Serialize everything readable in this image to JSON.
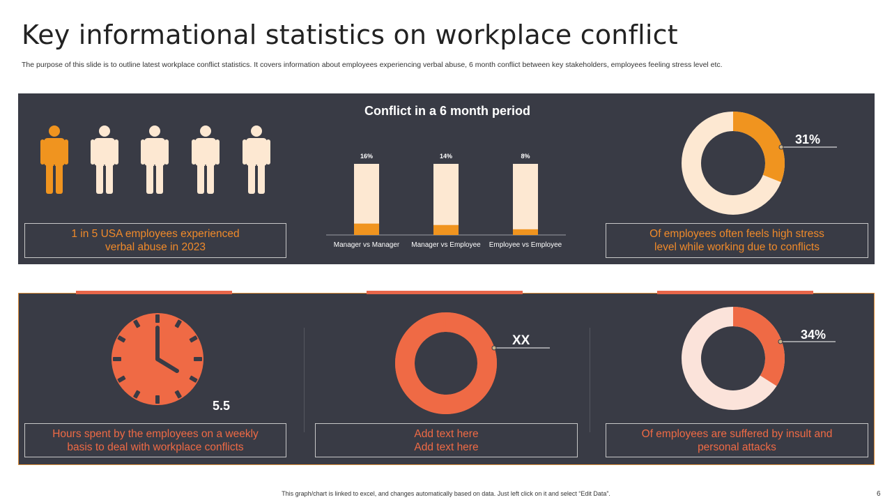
{
  "page": {
    "title": "Key informational statistics on workplace conflict",
    "subtitle": "The purpose of this slide is to outline latest workplace conflict statistics. It covers information about employees experiencing verbal abuse, 6 month conflict between key stakeholders, employees feeling stress level etc.",
    "footer": "This graph/chart is linked to excel, and changes automatically based on data. Just left click on it and select “Edit Data”.",
    "page_number": "6"
  },
  "colors": {
    "panel": "#393b45",
    "orange": "#f0941f",
    "red": "#ef6a45",
    "cream": "#fde8d2",
    "pink": "#fbe3da"
  },
  "top": {
    "people": {
      "highlighted": 1,
      "total": 5
    },
    "people_caption_line1": "1 in 5 USA employees experienced",
    "people_caption_line2": "verbal abuse in 2023",
    "stress_value": "31%",
    "stress_caption_line1": "Of employees often feels high stress",
    "stress_caption_line2": "level while working due to conflicts"
  },
  "bottom": {
    "clock_value": "5.5",
    "clock_caption_line1": "Hours spent by the employees on a weekly",
    "clock_caption_line2": "basis to deal with workplace conflicts",
    "xx_value": "XX",
    "xx_caption_line1": "Add text here",
    "xx_caption_line2": "Add text here",
    "insult_value": "34%",
    "insult_caption_line1": "Of employees are suffered by insult and",
    "insult_caption_line2": "personal attacks"
  },
  "chart_data": [
    {
      "type": "bar",
      "title": "Conflict in a 6 month period",
      "categories": [
        "Manager vs Manager",
        "Manager vs Employee",
        "Employee vs Employee"
      ],
      "values": [
        16,
        14,
        8
      ],
      "value_labels": [
        "16%",
        "14%",
        "8%"
      ],
      "ylim": [
        0,
        100
      ]
    },
    {
      "type": "pie",
      "title": "Of employees often feels high stress level while working due to conflicts",
      "values": [
        31,
        69
      ],
      "labels": [
        "31%",
        ""
      ]
    },
    {
      "type": "pie",
      "title": "Add text here",
      "values": [
        99,
        1
      ],
      "labels": [
        "XX",
        ""
      ]
    },
    {
      "type": "pie",
      "title": "Of employees are suffered by insult and personal attacks",
      "values": [
        34,
        66
      ],
      "labels": [
        "34%",
        ""
      ]
    }
  ]
}
